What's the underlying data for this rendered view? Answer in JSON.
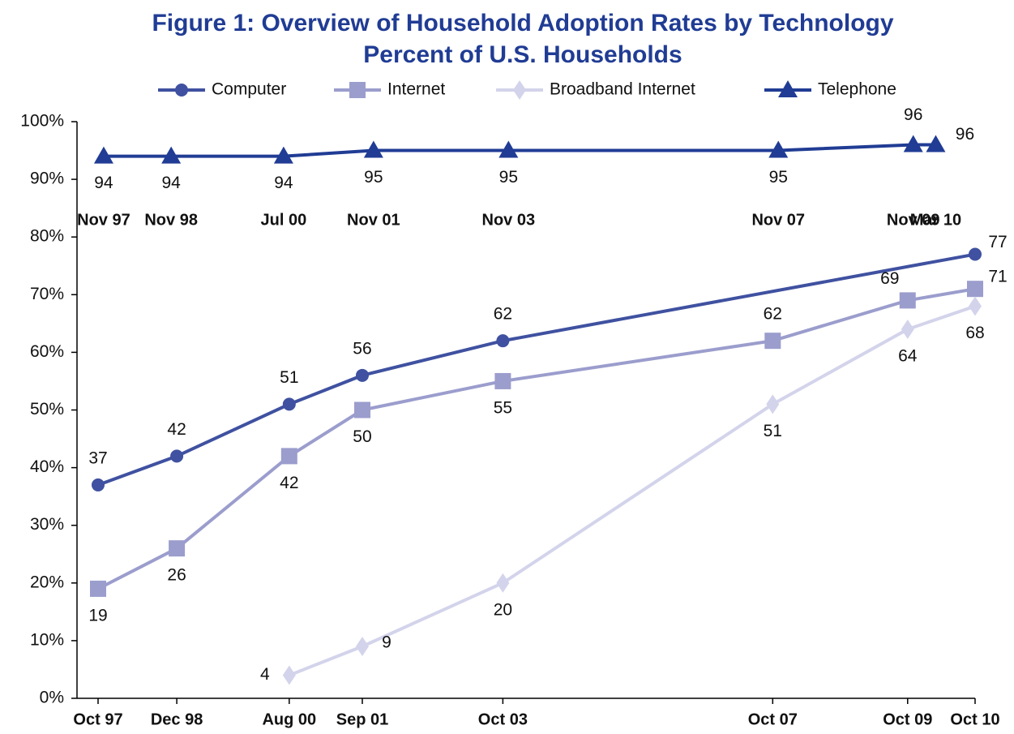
{
  "chart_data": {
    "type": "line",
    "title": "Figure 1:  Overview of Household Adoption Rates by Technology",
    "subtitle": "Percent of U.S. Households",
    "x": [
      "Oct 97",
      "Dec 98",
      "Aug 00",
      "Sep 01",
      "Oct 03",
      "Oct 07",
      "Oct 09",
      "Oct 10"
    ],
    "x2": [
      "Nov 97",
      "Nov 98",
      "Jul 00",
      "Nov 01",
      "Nov 03",
      "Nov 07",
      "Nov 09",
      "Mar 10"
    ],
    "ylim": [
      0,
      100
    ],
    "yticks": [
      {
        "value": 0,
        "label": "0%"
      },
      {
        "value": 10,
        "label": "10%"
      },
      {
        "value": 20,
        "label": "20%"
      },
      {
        "value": 30,
        "label": "30%"
      },
      {
        "value": 40,
        "label": "40%"
      },
      {
        "value": 50,
        "label": "50%"
      },
      {
        "value": 60,
        "label": "60%"
      },
      {
        "value": 70,
        "label": "70%"
      },
      {
        "value": 80,
        "label": "80%"
      },
      {
        "value": 90,
        "label": "90%"
      },
      {
        "value": 100,
        "label": "100%"
      }
    ],
    "legend": "top",
    "series": [
      {
        "name": "Computer",
        "color": "#3f51a0",
        "marker": "circle",
        "x": [
          "Oct 97",
          "Dec 98",
          "Aug 00",
          "Sep 01",
          "Oct 03",
          "Oct 10"
        ],
        "values": [
          37,
          42,
          51,
          56,
          62,
          77
        ]
      },
      {
        "name": "Internet",
        "color": "#9b9dcd",
        "marker": "square",
        "x": [
          "Oct 97",
          "Dec 98",
          "Aug 00",
          "Sep 01",
          "Oct 03",
          "Oct 07",
          "Oct 09",
          "Oct 10"
        ],
        "values": [
          19,
          26,
          42,
          50,
          55,
          62,
          69,
          71
        ]
      },
      {
        "name": "Broadband Internet",
        "color": "#d3d4eb",
        "marker": "diamond",
        "x": [
          "Aug 00",
          "Sep 01",
          "Oct 03",
          "Oct 07",
          "Oct 09",
          "Oct 10"
        ],
        "values": [
          4,
          9,
          20,
          51,
          64,
          68
        ]
      },
      {
        "name": "Telephone",
        "color": "#203c94",
        "marker": "triangle",
        "xaxis": "top",
        "x": [
          "Nov 97",
          "Nov 98",
          "Jul 00",
          "Nov 01",
          "Nov 03",
          "Nov 07",
          "Nov 09",
          "Mar 10"
        ],
        "values": [
          94,
          94,
          94,
          95,
          95,
          95,
          96,
          96
        ]
      }
    ]
  }
}
